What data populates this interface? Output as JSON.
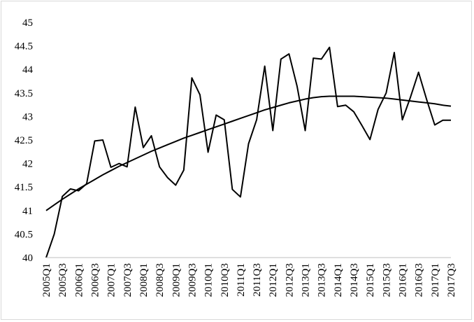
{
  "chart_data": {
    "type": "line",
    "title": "",
    "xlabel": "",
    "ylabel": "",
    "ylim": [
      40,
      45
    ],
    "yticks": [
      "40",
      "40.5",
      "41",
      "41.5",
      "42",
      "42.5",
      "43",
      "43.5",
      "44",
      "44.5",
      "45"
    ],
    "grid": false,
    "legend": "none",
    "line_color": "#000000",
    "x": [
      "2005Q1",
      "2005Q2",
      "2005Q3",
      "2005Q4",
      "2006Q1",
      "2006Q2",
      "2006Q3",
      "2006Q4",
      "2007Q1",
      "2007Q2",
      "2007Q3",
      "2007Q4",
      "2008Q1",
      "2008Q2",
      "2008Q3",
      "2008Q4",
      "2009Q1",
      "2009Q2",
      "2009Q3",
      "2009Q4",
      "2010Q1",
      "2010Q2",
      "2010Q3",
      "2010Q4",
      "2011Q1",
      "2011Q2",
      "2011Q3",
      "2011Q4",
      "2012Q1",
      "2012Q2",
      "2012Q3",
      "2012Q4",
      "2013Q1",
      "2013Q2",
      "2013Q3",
      "2013Q4",
      "2014Q1",
      "2014Q2",
      "2014Q3",
      "2014Q4",
      "2015Q1",
      "2015Q2",
      "2015Q3",
      "2015Q4",
      "2016Q1",
      "2016Q2",
      "2016Q3",
      "2016Q4",
      "2017Q1",
      "2017Q2",
      "2017Q3"
    ],
    "x_tick_labels": [
      "2005Q1",
      "2005Q3",
      "2006Q1",
      "2006Q3",
      "2007Q1",
      "2007Q3",
      "2008Q1",
      "2008Q3",
      "2009Q1",
      "2009Q3",
      "2010Q1",
      "2010Q3",
      "2011Q1",
      "2011Q3",
      "2012Q1",
      "2012Q3",
      "2013Q1",
      "2013Q3",
      "2014Q1",
      "2014Q3",
      "2015Q1",
      "2015Q3",
      "2016Q1",
      "2016Q3",
      "2017Q1",
      "2017Q3"
    ],
    "series": [
      {
        "values": [
          40.0,
          40.5,
          41.3,
          41.46,
          41.42,
          41.57,
          42.48,
          42.5,
          41.92,
          42.0,
          41.93,
          43.2,
          42.34,
          42.59,
          41.93,
          41.7,
          41.54,
          41.86,
          43.82,
          43.46,
          42.24,
          43.03,
          42.93,
          41.45,
          41.29,
          42.42,
          42.93,
          44.07,
          42.7,
          44.22,
          44.33,
          43.64,
          42.7,
          44.24,
          44.22,
          44.47,
          43.21,
          43.24,
          43.1,
          42.81,
          42.51,
          43.15,
          43.5,
          44.36,
          42.93,
          43.41,
          43.94,
          43.36,
          42.82,
          42.92,
          42.92
        ]
      },
      {
        "values": [
          41.0,
          41.12,
          41.24,
          41.35,
          41.46,
          41.56,
          41.66,
          41.76,
          41.85,
          41.94,
          42.02,
          42.1,
          42.18,
          42.26,
          42.33,
          42.4,
          42.47,
          42.54,
          42.6,
          42.66,
          42.72,
          42.78,
          42.84,
          42.9,
          42.96,
          43.02,
          43.08,
          43.14,
          43.19,
          43.24,
          43.29,
          43.33,
          43.37,
          43.4,
          43.42,
          43.43,
          43.43,
          43.43,
          43.43,
          43.42,
          43.41,
          43.4,
          43.39,
          43.37,
          43.35,
          43.33,
          43.31,
          43.29,
          43.27,
          43.24,
          43.22
        ]
      }
    ]
  }
}
